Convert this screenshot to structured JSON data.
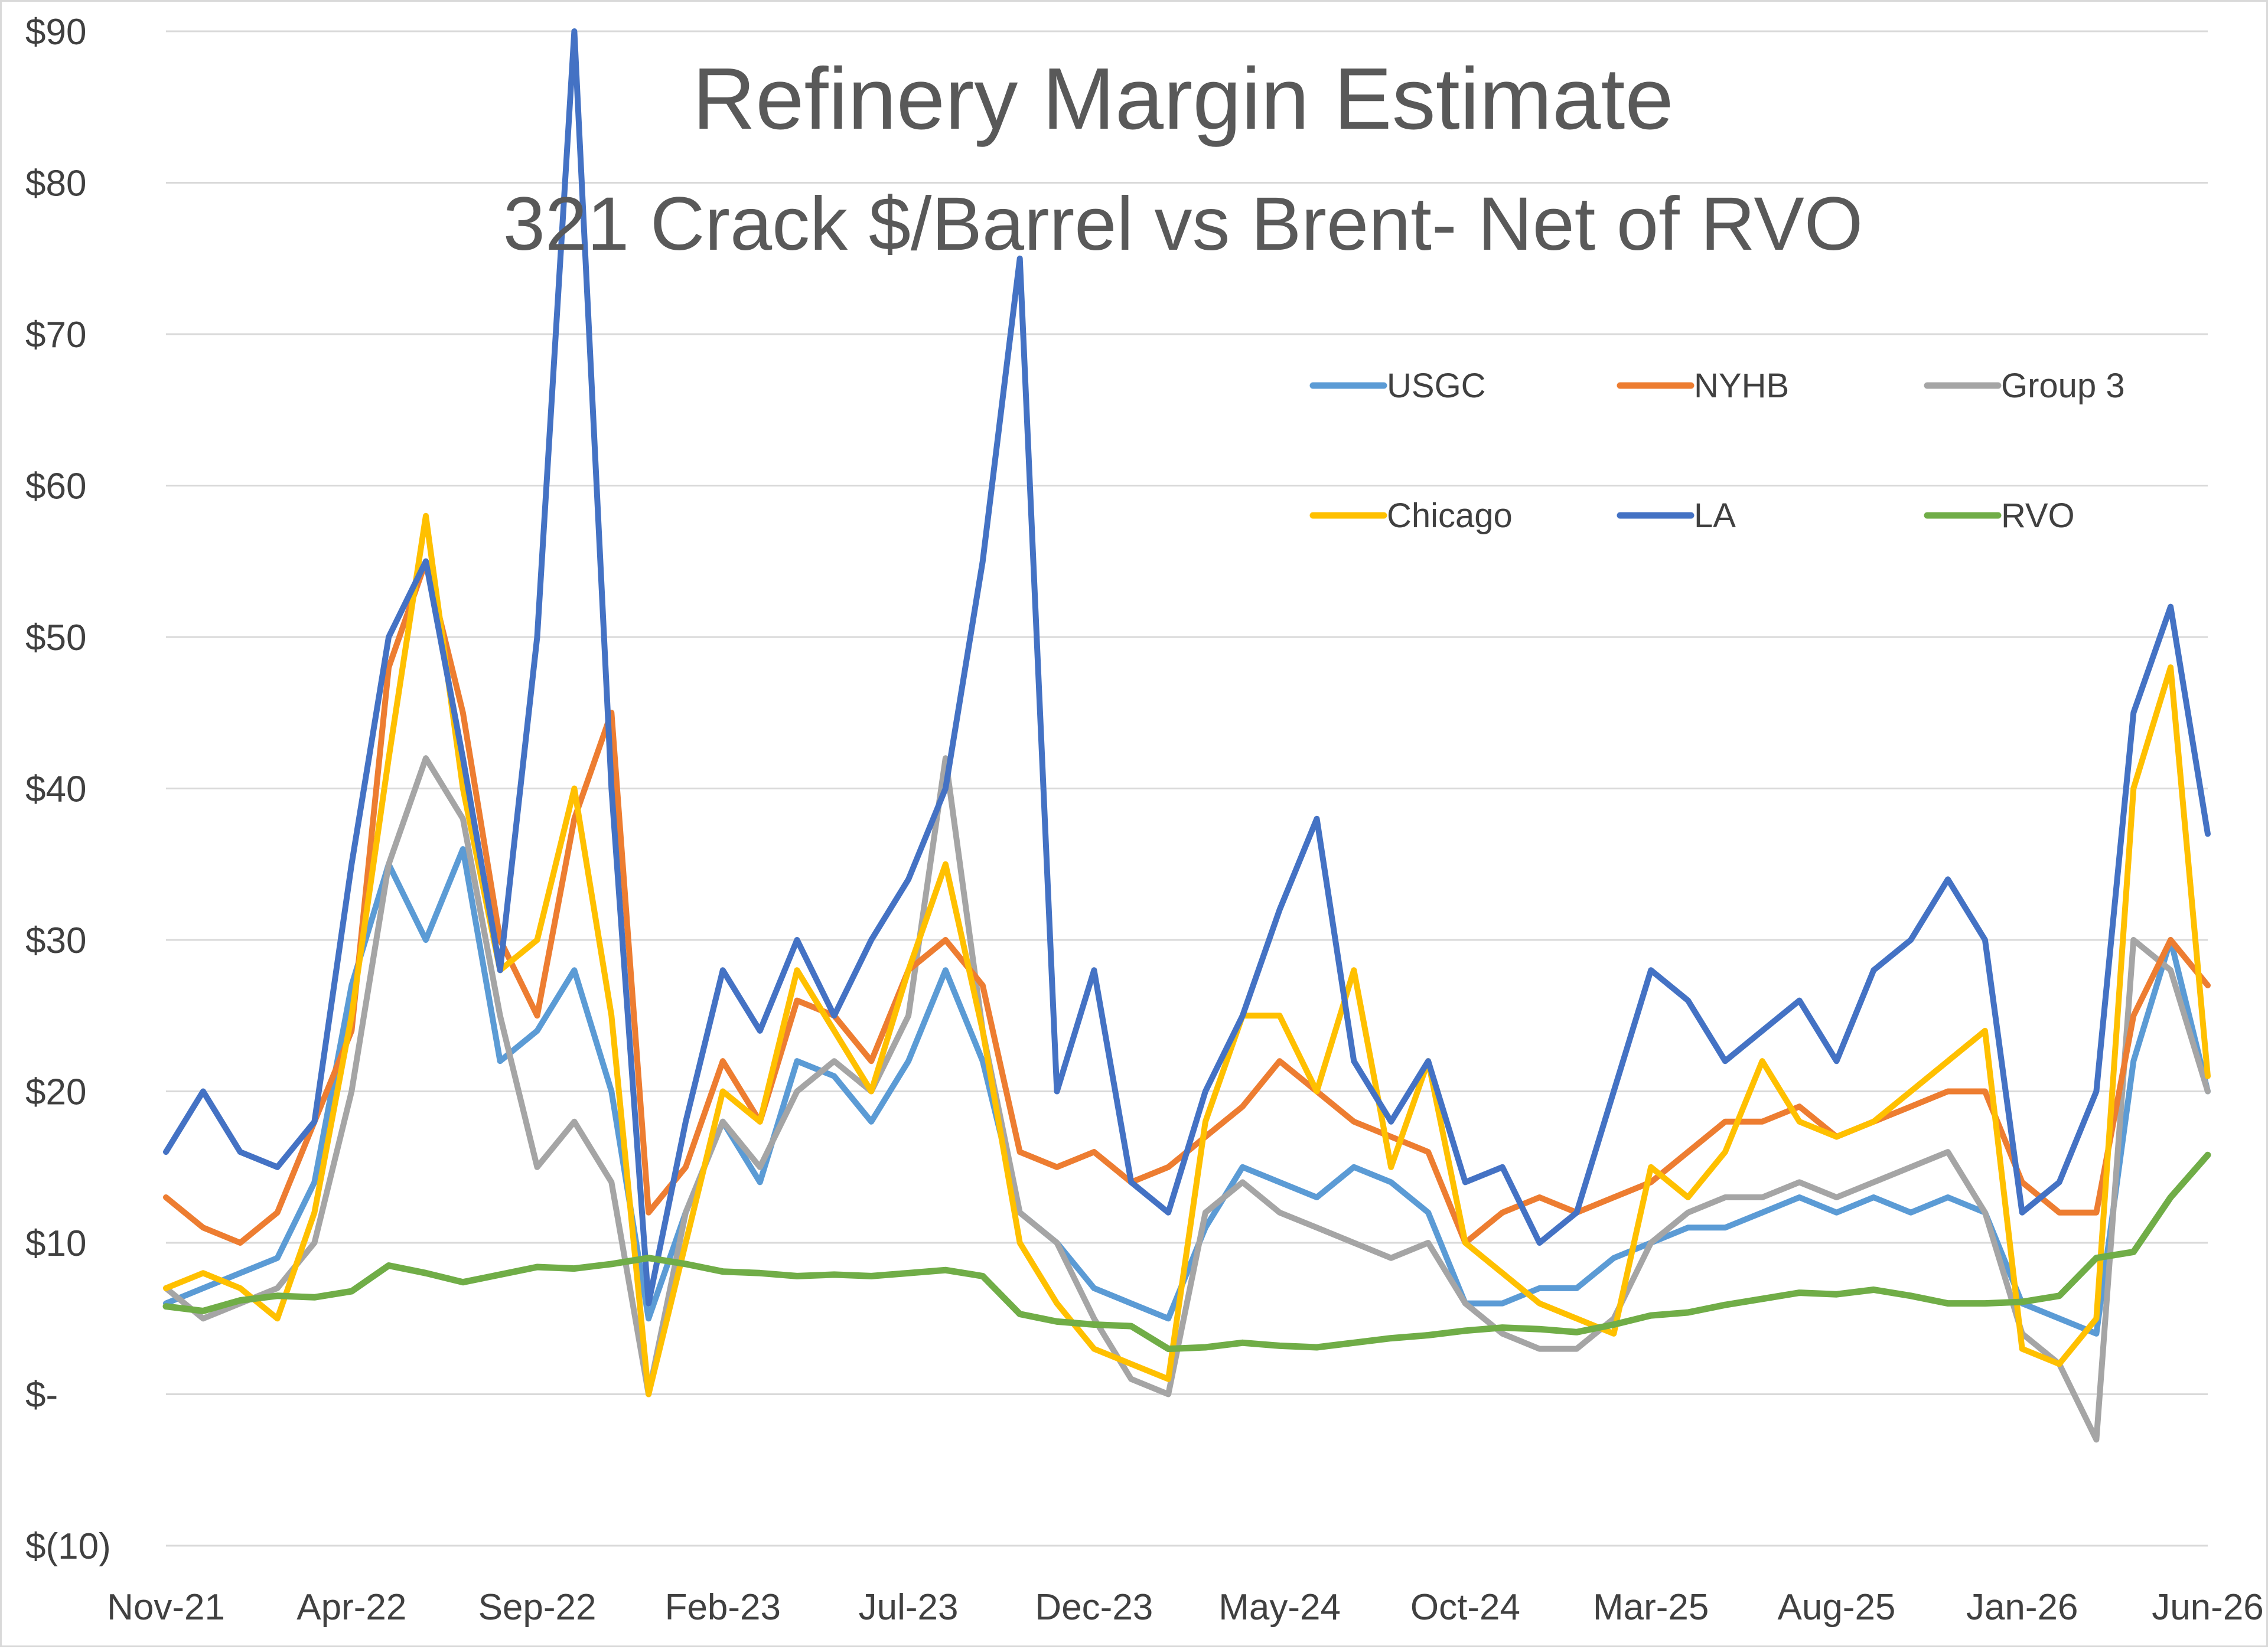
{
  "chart_data": {
    "type": "line",
    "title": "Refinery Margin Estimate",
    "subtitle": "321 Crack $/Barrel vs Brent- Net of RVO",
    "xlabel": "",
    "ylabel": "",
    "ylim": [
      -10,
      90
    ],
    "grid": "horizontal",
    "legend_position": "top-right",
    "y_ticks": [
      {
        "value": 90,
        "label": "$90"
      },
      {
        "value": 80,
        "label": "$80"
      },
      {
        "value": 70,
        "label": "$70"
      },
      {
        "value": 60,
        "label": "$60"
      },
      {
        "value": 50,
        "label": "$50"
      },
      {
        "value": 40,
        "label": "$40"
      },
      {
        "value": 30,
        "label": "$30"
      },
      {
        "value": 20,
        "label": "$20"
      },
      {
        "value": 10,
        "label": "$10"
      },
      {
        "value": 0,
        "label": "$-"
      },
      {
        "value": -10,
        "label": "$(10)"
      }
    ],
    "x_ticks": [
      "Nov-21",
      "Apr-22",
      "Sep-22",
      "Feb-23",
      "Jul-23",
      "Dec-23",
      "May-24",
      "Oct-24",
      "Mar-25",
      "Aug-25",
      "Jan-26",
      "Jun-26"
    ],
    "x": [
      "Nov-21",
      "Dec-21",
      "Jan-22",
      "Feb-22",
      "Mar-22",
      "Apr-22",
      "May-22",
      "Jun-22",
      "Jul-22",
      "Aug-22",
      "Sep-22",
      "Oct-22",
      "Nov-22",
      "Dec-22",
      "Jan-23",
      "Feb-23",
      "Mar-23",
      "Apr-23",
      "May-23",
      "Jun-23",
      "Jul-23",
      "Aug-23",
      "Sep-23",
      "Oct-23",
      "Nov-23",
      "Dec-23",
      "Jan-24",
      "Feb-24",
      "Mar-24",
      "Apr-24",
      "May-24",
      "Jun-24",
      "Jul-24",
      "Aug-24",
      "Sep-24",
      "Oct-24",
      "Nov-24",
      "Dec-24",
      "Jan-25",
      "Feb-25",
      "Mar-25",
      "Apr-25",
      "May-25",
      "Jun-25",
      "Jul-25",
      "Aug-25",
      "Sep-25",
      "Oct-25",
      "Nov-25",
      "Dec-25",
      "Jan-26",
      "Feb-26",
      "Mar-26",
      "Apr-26",
      "May-26",
      "Jun-26"
    ],
    "series": [
      {
        "name": "USGC",
        "color": "#5b9bd5",
        "values": [
          6,
          7,
          8,
          9,
          14,
          27,
          35,
          30,
          36,
          22,
          24,
          28,
          20,
          5,
          12,
          18,
          14,
          22,
          21,
          18,
          22,
          28,
          22,
          12,
          10,
          7,
          6,
          5,
          11,
          15,
          14,
          13,
          15,
          14,
          12,
          6,
          6,
          7,
          7,
          9,
          10,
          11,
          11,
          12,
          13,
          12,
          13,
          12,
          13,
          12,
          6,
          5,
          4,
          22,
          30,
          20
        ]
      },
      {
        "name": "NYHB",
        "color": "#ed7d31",
        "values": [
          13,
          11,
          10,
          12,
          18,
          24,
          48,
          55,
          45,
          30,
          25,
          38,
          45,
          12,
          15,
          22,
          18,
          26,
          25,
          22,
          28,
          30,
          27,
          16,
          15,
          16,
          14,
          15,
          17,
          19,
          22,
          20,
          18,
          17,
          16,
          10,
          12,
          13,
          12,
          13,
          14,
          16,
          18,
          18,
          19,
          17,
          18,
          19,
          20,
          20,
          14,
          12,
          12,
          25,
          30,
          27
        ]
      },
      {
        "name": "Group 3",
        "color": "#a5a5a5",
        "values": [
          7,
          5,
          6,
          7,
          10,
          20,
          35,
          42,
          38,
          25,
          15,
          18,
          14,
          0,
          12,
          18,
          15,
          20,
          22,
          20,
          25,
          42,
          24,
          12,
          10,
          5,
          1,
          0,
          12,
          14,
          12,
          11,
          10,
          9,
          10,
          6,
          4,
          3,
          3,
          5,
          10,
          12,
          13,
          13,
          14,
          13,
          14,
          15,
          16,
          12,
          4,
          2,
          -3,
          30,
          28,
          20
        ]
      },
      {
        "name": "Chicago",
        "color": "#ffc000",
        "values": [
          7,
          8,
          7,
          5,
          12,
          25,
          42,
          58,
          40,
          28,
          30,
          40,
          25,
          0,
          10,
          20,
          18,
          28,
          24,
          20,
          28,
          35,
          24,
          10,
          6,
          3,
          2,
          1,
          18,
          25,
          25,
          20,
          28,
          15,
          22,
          10,
          8,
          6,
          5,
          4,
          15,
          13,
          16,
          22,
          18,
          17,
          18,
          20,
          22,
          24,
          3,
          2,
          5,
          40,
          48,
          21
        ]
      },
      {
        "name": "LA",
        "color": "#4472c4",
        "values": [
          16,
          20,
          16,
          15,
          18,
          35,
          50,
          55,
          42,
          28,
          50,
          90,
          40,
          6,
          18,
          28,
          24,
          30,
          25,
          30,
          34,
          40,
          55,
          75,
          20,
          28,
          14,
          12,
          20,
          25,
          32,
          38,
          22,
          18,
          22,
          14,
          15,
          10,
          12,
          20,
          28,
          26,
          22,
          24,
          26,
          22,
          28,
          30,
          34,
          30,
          12,
          14,
          20,
          45,
          52,
          37
        ]
      },
      {
        "name": "RVO",
        "color": "#70ad47",
        "values": [
          5.8,
          5.5,
          6.2,
          6.5,
          6.4,
          6.8,
          8.5,
          8.0,
          7.4,
          7.9,
          8.4,
          8.3,
          8.6,
          9.0,
          8.6,
          8.1,
          8.0,
          7.8,
          7.9,
          7.8,
          8.0,
          8.2,
          7.8,
          5.3,
          4.8,
          4.6,
          4.5,
          3.0,
          3.1,
          3.4,
          3.2,
          3.1,
          3.4,
          3.7,
          3.9,
          4.2,
          4.4,
          4.3,
          4.1,
          4.6,
          5.2,
          5.4,
          5.9,
          6.3,
          6.7,
          6.6,
          6.9,
          6.5,
          6.0,
          6.0,
          6.1,
          6.5,
          9.0,
          9.4,
          13.0,
          15.8
        ]
      }
    ]
  }
}
